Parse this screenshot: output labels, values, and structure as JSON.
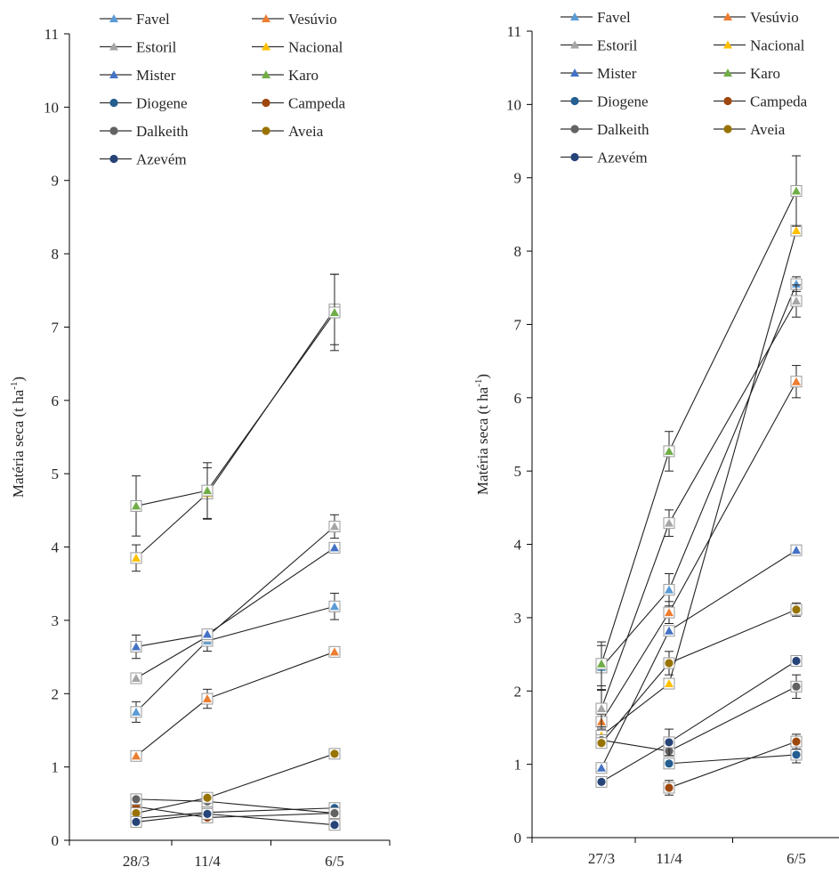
{
  "chart_data": [
    {
      "type": "line",
      "ylabel": "Matéria seca (t ha-1)",
      "ylabel_base": "Matéria seca (t ha",
      "ylabel_sup": "-1",
      "ylabel_tail": ")",
      "ylim": [
        0,
        11
      ],
      "yticks": [
        "0",
        "1",
        "2",
        "3",
        "4",
        "5",
        "6",
        "7",
        "8",
        "9",
        "10",
        "11"
      ],
      "categories": [
        "28/3",
        "11/4",
        "6/5"
      ],
      "legend_position": "top",
      "series": [
        {
          "name": "Favel",
          "color": "#5b9bd5",
          "marker": "triangle",
          "values": [
            1.75,
            2.72,
            3.19
          ],
          "errors": [
            0.14,
            0.14,
            0.18
          ]
        },
        {
          "name": "Vesúvio",
          "color": "#ed7d31",
          "marker": "triangle",
          "values": [
            1.15,
            1.93,
            2.57
          ],
          "errors": [
            0.04,
            0.13,
            0.05
          ]
        },
        {
          "name": "Estoril",
          "color": "#a5a5a5",
          "marker": "triangle",
          "values": [
            2.21,
            2.78,
            4.28
          ],
          "errors": [
            0.06,
            0.05,
            0.16
          ]
        },
        {
          "name": "Nacional",
          "color": "#ffc000",
          "marker": "triangle",
          "values": [
            3.85,
            4.73,
            7.24
          ],
          "errors": [
            0.18,
            0.35,
            0.48
          ]
        },
        {
          "name": "Mister",
          "color": "#4472c4",
          "marker": "triangle",
          "values": [
            2.64,
            2.81,
            3.99
          ],
          "errors": [
            0.16,
            0.05,
            0.04
          ]
        },
        {
          "name": "Karo",
          "color": "#70ad47",
          "marker": "triangle",
          "values": [
            4.56,
            4.77,
            7.2
          ],
          "errors": [
            0.41,
            0.38,
            0.52
          ]
        },
        {
          "name": "Diogene",
          "color": "#255e91",
          "marker": "circle",
          "values": [
            0.3,
            0.38,
            0.44
          ],
          "errors": [
            0.03,
            0.03,
            0.03
          ]
        },
        {
          "name": "Campeda",
          "color": "#9e480e",
          "marker": "circle",
          "values": [
            0.46,
            0.31,
            0.37
          ],
          "errors": [
            0.03,
            0.03,
            0.03
          ]
        },
        {
          "name": "Dalkeith",
          "color": "#636363",
          "marker": "circle",
          "values": [
            0.56,
            0.53,
            0.37
          ],
          "errors": [
            0.03,
            0.03,
            0.03
          ]
        },
        {
          "name": "Aveia",
          "color": "#997300",
          "marker": "circle",
          "values": [
            0.37,
            0.58,
            1.18
          ],
          "errors": [
            0.03,
            0.03,
            0.06
          ]
        },
        {
          "name": "Azevém",
          "color": "#264478",
          "marker": "circle",
          "values": [
            0.25,
            0.36,
            0.21
          ],
          "errors": [
            0.03,
            0.03,
            0.03
          ]
        }
      ]
    },
    {
      "type": "line",
      "ylabel": "Matéria seca (t ha-1)",
      "ylabel_base": "Matéria seca (t ha",
      "ylabel_sup": "-1",
      "ylabel_tail": ")",
      "ylim": [
        0,
        11
      ],
      "yticks": [
        "0",
        "1",
        "2",
        "3",
        "4",
        "5",
        "6",
        "7",
        "8",
        "9",
        "10",
        "11"
      ],
      "categories": [
        "27/3",
        "11/4",
        "6/5"
      ],
      "legend_position": "top",
      "series": [
        {
          "name": "Favel",
          "color": "#5b9bd5",
          "marker": "triangle",
          "values": [
            2.32,
            3.38,
            7.55
          ],
          "errors": [
            0.3,
            0.22,
            0.1
          ]
        },
        {
          "name": "Vesúvio",
          "color": "#ed7d31",
          "marker": "triangle",
          "values": [
            1.58,
            3.07,
            6.22
          ],
          "errors": [
            0.1,
            0.15,
            0.22
          ]
        },
        {
          "name": "Estoril",
          "color": "#a5a5a5",
          "marker": "triangle",
          "values": [
            1.76,
            4.29,
            7.32
          ],
          "errors": [
            0.25,
            0.18,
            0.22
          ]
        },
        {
          "name": "Nacional",
          "color": "#ffc000",
          "marker": "triangle",
          "values": [
            1.39,
            2.1,
            8.28
          ],
          "errors": [
            0.05,
            0.05,
            0.06
          ]
        },
        {
          "name": "Mister",
          "color": "#4472c4",
          "marker": "triangle",
          "values": [
            0.95,
            2.82,
            3.92
          ],
          "errors": [
            0.05,
            0.05,
            0.04
          ]
        },
        {
          "name": "Karo",
          "color": "#70ad47",
          "marker": "triangle",
          "values": [
            2.37,
            5.27,
            8.82
          ],
          "errors": [
            0.3,
            0.27,
            0.48
          ]
        },
        {
          "name": "Diogene",
          "color": "#255e91",
          "marker": "circle",
          "values": [
            null,
            1.01,
            1.13
          ],
          "errors": [
            0,
            0.05,
            0.11
          ]
        },
        {
          "name": "Campeda",
          "color": "#9e480e",
          "marker": "circle",
          "values": [
            null,
            0.68,
            1.31
          ],
          "errors": [
            0,
            0.1,
            0.1
          ]
        },
        {
          "name": "Dalkeith",
          "color": "#636363",
          "marker": "circle",
          "values": [
            1.33,
            1.18,
            2.06
          ],
          "errors": [
            0.05,
            0.05,
            0.16
          ]
        },
        {
          "name": "Aveia",
          "color": "#997300",
          "marker": "circle",
          "values": [
            1.29,
            2.38,
            3.11
          ],
          "errors": [
            0.05,
            0.16,
            0.09
          ]
        },
        {
          "name": "Azevém",
          "color": "#264478",
          "marker": "circle",
          "values": [
            0.76,
            1.3,
            2.41
          ],
          "errors": [
            0.05,
            0.18,
            0.04
          ]
        }
      ]
    }
  ]
}
